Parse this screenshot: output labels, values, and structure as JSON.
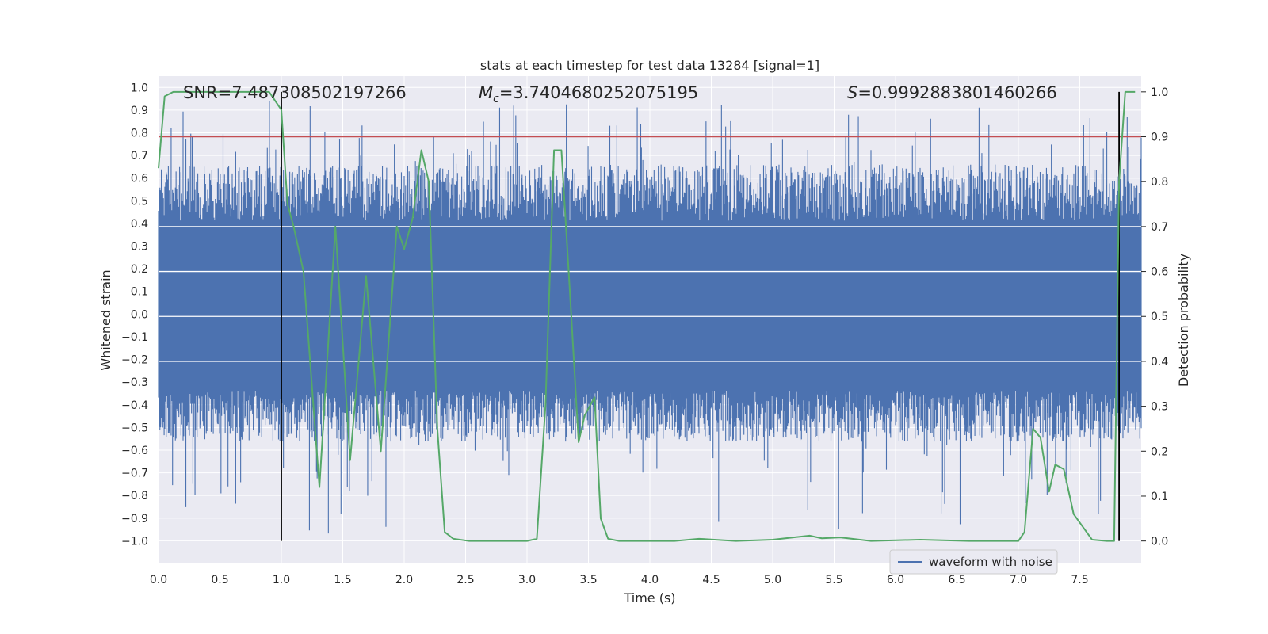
{
  "chart_data": {
    "type": "line",
    "title": "stats at each timestep for test data 13284 [signal=1]",
    "xlabel": "Time (s)",
    "ylabel": "Whitened strain",
    "y2label": "Detection probability",
    "xlim": [
      0,
      8
    ],
    "ylim": [
      -1.1,
      1.05
    ],
    "y2lim": [
      -0.05,
      1.035
    ],
    "x_ticks": [
      "0.0",
      "0.5",
      "1.0",
      "1.5",
      "2.0",
      "2.5",
      "3.0",
      "3.5",
      "4.0",
      "4.5",
      "5.0",
      "5.5",
      "6.0",
      "6.5",
      "7.0",
      "7.5"
    ],
    "y_ticks": [
      "1.0",
      "0.9",
      "0.8",
      "0.7",
      "0.6",
      "0.5",
      "0.4",
      "0.3",
      "0.2",
      "0.1",
      "0.0",
      "−0.1",
      "−0.2",
      "−0.3",
      "−0.4",
      "−0.5",
      "−0.6",
      "−0.7",
      "−0.8",
      "−0.9",
      "−1.0"
    ],
    "y2_ticks": [
      "1.0",
      "0.9",
      "0.8",
      "0.7",
      "0.6",
      "0.5",
      "0.4",
      "0.3",
      "0.2",
      "0.1",
      "0.0"
    ],
    "threshold": 0.9,
    "vertical_lines_x": [
      1.0,
      7.82
    ],
    "annotations": {
      "snr_label": "SNR=7.487308502197266",
      "mc_symbol": "M",
      "mc_subscript": "c",
      "mc_value": "=3.7404680252075195",
      "s_symbol": "S",
      "s_value": "=0.9992883801460266"
    },
    "legend": {
      "label": "waveform with noise",
      "position": "lower-right"
    },
    "waveform_amplitude": {
      "typical_upper": 0.55,
      "typical_lower": -0.45,
      "peak_upper": 0.95,
      "peak_lower": -0.98
    },
    "series": [
      {
        "name": "detection probability",
        "axis": "right",
        "color": "#55a868",
        "x": [
          0.0,
          0.05,
          0.12,
          0.9,
          0.95,
          1.0,
          1.05,
          1.1,
          1.18,
          1.31,
          1.44,
          1.56,
          1.69,
          1.81,
          1.94,
          2.0,
          2.07,
          2.14,
          2.2,
          2.27,
          2.33,
          2.4,
          2.53,
          3.0,
          3.08,
          3.15,
          3.22,
          3.28,
          3.35,
          3.42,
          3.47,
          3.55,
          3.6,
          3.66,
          3.75,
          4.2,
          4.4,
          4.7,
          5.0,
          5.3,
          5.4,
          5.55,
          5.8,
          6.2,
          6.6,
          7.0,
          7.05,
          7.12,
          7.18,
          7.25,
          7.3,
          7.37,
          7.45,
          7.6,
          7.72,
          7.78,
          7.82,
          7.87,
          7.95
        ],
        "y": [
          0.83,
          0.99,
          1.0,
          1.0,
          0.98,
          0.96,
          0.75,
          0.7,
          0.6,
          0.12,
          0.7,
          0.18,
          0.59,
          0.2,
          0.7,
          0.65,
          0.72,
          0.87,
          0.8,
          0.25,
          0.02,
          0.005,
          0.0,
          0.0,
          0.005,
          0.3,
          0.87,
          0.87,
          0.55,
          0.22,
          0.28,
          0.32,
          0.05,
          0.005,
          0.0,
          0.0,
          0.005,
          0.0,
          0.003,
          0.012,
          0.006,
          0.008,
          0.0,
          0.003,
          0.0,
          0.0,
          0.02,
          0.25,
          0.23,
          0.11,
          0.17,
          0.16,
          0.06,
          0.003,
          0.0,
          0.0,
          0.8,
          1.0,
          1.0
        ]
      }
    ]
  }
}
